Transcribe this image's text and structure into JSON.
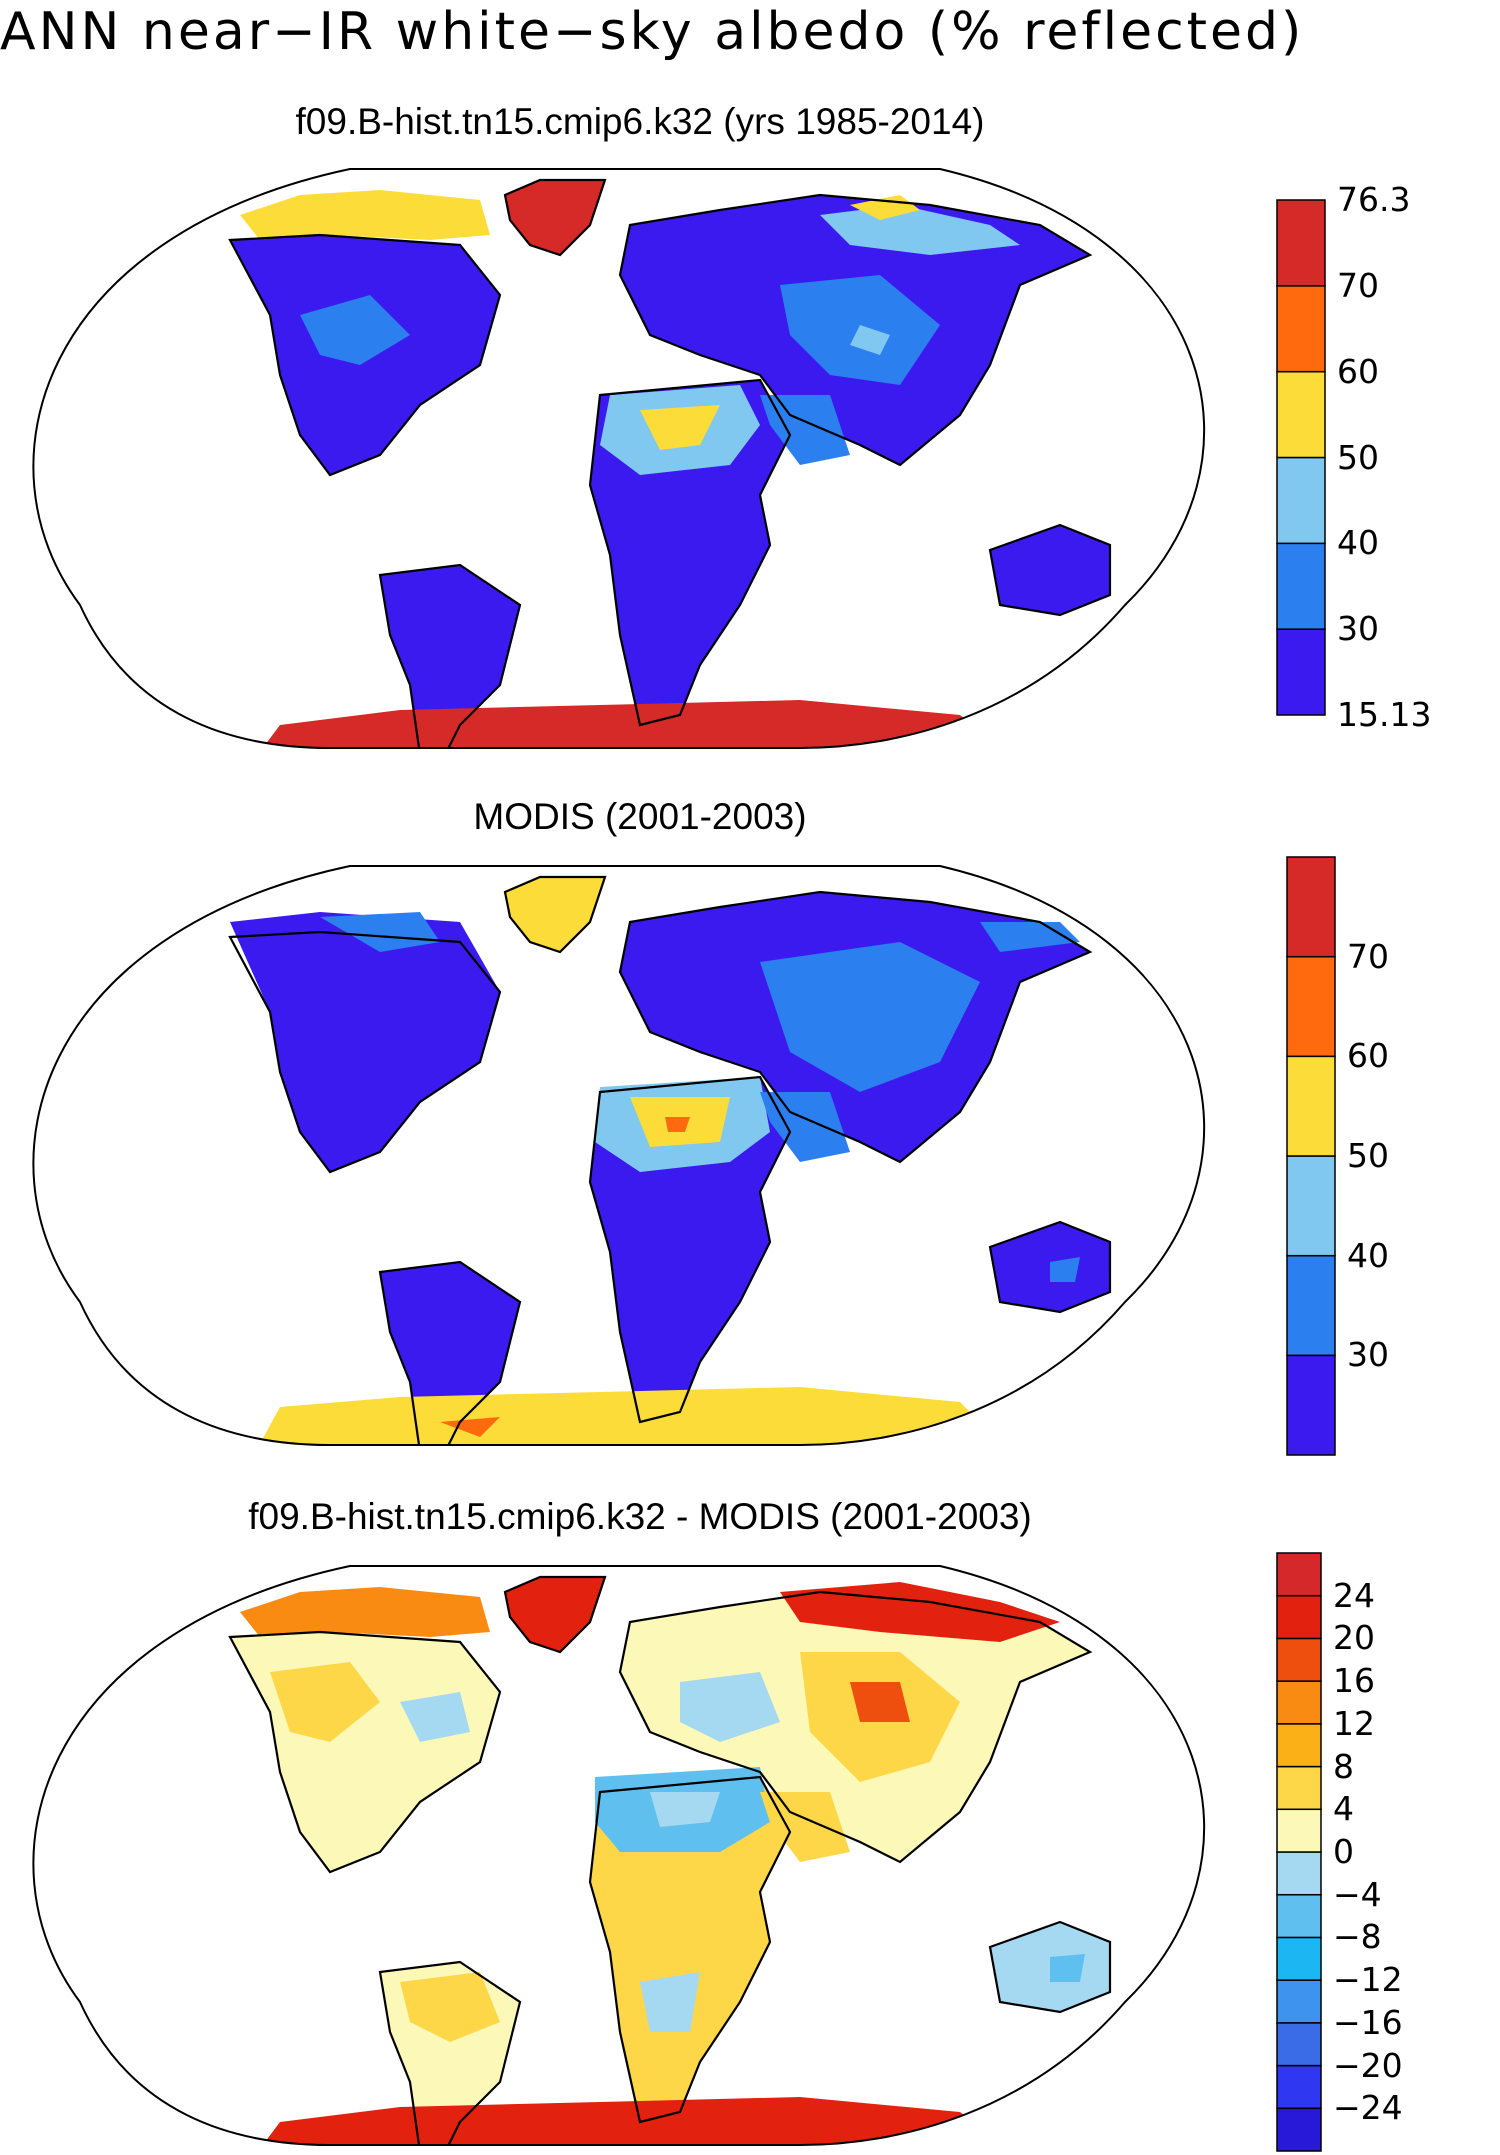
{
  "title": "ANN near−IR white−sky albedo (% reflected)",
  "panels": [
    {
      "title": "f09.B-hist.tn15.cmip6.k32 (yrs 1985-2014)",
      "colorbar": {
        "colors": [
          "#3a1aef",
          "#2c7fef",
          "#80c8f0",
          "#fcdc38",
          "#ff6a0e",
          "#d62a28"
        ],
        "labels": [
          "15.13",
          "30",
          "40",
          "50",
          "60",
          "70",
          "76.3"
        ]
      }
    },
    {
      "title": "MODIS (2001-2003)",
      "colorbar": {
        "colors": [
          "#3a1aef",
          "#2c7fef",
          "#80c8f0",
          "#fcdc38",
          "#ff6a0e",
          "#d62a28"
        ],
        "labels": [
          "",
          "30",
          "40",
          "50",
          "60",
          "70",
          ""
        ]
      }
    },
    {
      "title": "f09.B-hist.tn15.cmip6.k32 - MODIS (2001-2003)",
      "colorbar": {
        "colors": [
          "#2818d8",
          "#2f37f0",
          "#3b6ce8",
          "#3e93ef",
          "#1cb6f3",
          "#5fc0f0",
          "#a4d9f1",
          "#fcf8b8",
          "#fdd747",
          "#fcb018",
          "#f98b13",
          "#ee4f0f",
          "#e2220f",
          "#d4282a"
        ],
        "labels": [
          "",
          "−24",
          "−20",
          "−16",
          "−12",
          "−8",
          "−4",
          "0",
          "4",
          "8",
          "12",
          "16",
          "20",
          "24",
          ""
        ]
      }
    }
  ]
}
